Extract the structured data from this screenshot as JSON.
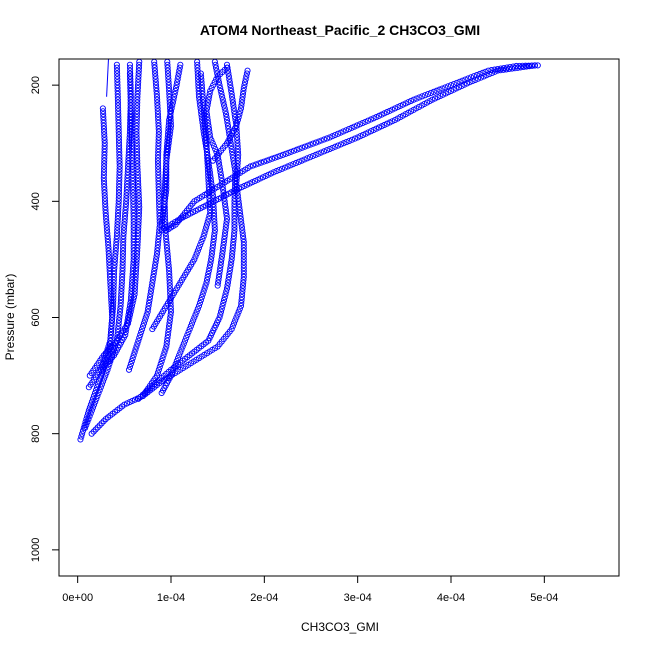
{
  "chart_data": {
    "type": "scatter",
    "title": "ATOM4 Northeast_Pacific_2 CH3CO3_GMI",
    "xlabel": "CH3CO3_GMI",
    "ylabel": "Pressure (mbar)",
    "xlim": [
      -2e-05,
      0.00058
    ],
    "ylim": [
      1045,
      155
    ],
    "y_reversed": true,
    "x_ticks": [
      {
        "value": 0,
        "label": "0e+00"
      },
      {
        "value": 0.0001,
        "label": "1e-04"
      },
      {
        "value": 0.0002,
        "label": "2e-04"
      },
      {
        "value": 0.0003,
        "label": "3e-04"
      },
      {
        "value": 0.0004,
        "label": "4e-04"
      },
      {
        "value": 0.0005,
        "label": "5e-04"
      }
    ],
    "y_ticks": [
      {
        "value": 200,
        "label": "200"
      },
      {
        "value": 400,
        "label": "400"
      },
      {
        "value": 600,
        "label": "600"
      },
      {
        "value": 800,
        "label": "800"
      },
      {
        "value": 1000,
        "label": "1000"
      }
    ],
    "marker": "open-circle",
    "marker_color": "#0000ff",
    "grid": false,
    "legend": "none",
    "series": [
      {
        "values": [
          [
            3e-06,
            810
          ],
          [
            1.2e-05,
            760
          ],
          [
            2.3e-05,
            710
          ],
          [
            3.4e-05,
            660
          ],
          [
            3.7e-05,
            600
          ],
          [
            3.5e-05,
            540
          ],
          [
            3.3e-05,
            480
          ],
          [
            3e-05,
            420
          ],
          [
            2.8e-05,
            360
          ],
          [
            2.9e-05,
            300
          ],
          [
            2.7e-05,
            240
          ]
        ]
      },
      {
        "values": [
          [
            8e-06,
            790
          ],
          [
            2e-05,
            740
          ],
          [
            3.2e-05,
            690
          ],
          [
            4.2e-05,
            640
          ],
          [
            4.6e-05,
            580
          ],
          [
            4.8e-05,
            520
          ],
          [
            4.9e-05,
            460
          ],
          [
            5.2e-05,
            400
          ],
          [
            5.4e-05,
            340
          ],
          [
            5.6e-05,
            280
          ],
          [
            5.7e-05,
            220
          ],
          [
            5.6e-05,
            165
          ]
        ]
      },
      {
        "values": [
          [
            1.2e-05,
            720
          ],
          [
            2.5e-05,
            690
          ],
          [
            3.9e-05,
            665
          ],
          [
            5.1e-05,
            630
          ],
          [
            5.7e-05,
            570
          ],
          [
            6e-05,
            500
          ],
          [
            6e-05,
            430
          ],
          [
            5.9e-05,
            360
          ],
          [
            5.8e-05,
            300
          ],
          [
            5.7e-05,
            240
          ],
          [
            5.6e-05,
            180
          ]
        ]
      },
      {
        "values": [
          [
            1.3e-05,
            700
          ],
          [
            2.8e-05,
            665
          ],
          [
            4.2e-05,
            640
          ],
          [
            5.4e-05,
            610
          ],
          [
            6.1e-05,
            560
          ],
          [
            6.4e-05,
            480
          ],
          [
            6.6e-05,
            410
          ],
          [
            6.4e-05,
            340
          ],
          [
            6.3e-05,
            280
          ],
          [
            6.4e-05,
            220
          ],
          [
            6.6e-05,
            160
          ]
        ]
      },
      {
        "values": [
          [
            1.5e-05,
            800
          ],
          [
            3e-05,
            775
          ],
          [
            5e-05,
            750
          ],
          [
            7e-05,
            735
          ],
          [
            8.5e-05,
            700
          ],
          [
            9.5e-05,
            650
          ],
          [
            0.0001,
            590
          ],
          [
            9.8e-05,
            520
          ],
          [
            9.4e-05,
            450
          ],
          [
            9.3e-05,
            390
          ],
          [
            9.5e-05,
            330
          ],
          [
            0.0001,
            270
          ],
          [
            9.8e-05,
            210
          ],
          [
            9.6e-05,
            160
          ]
        ]
      },
      {
        "values": [
          [
            6.5e-05,
            740
          ],
          [
            8.2e-05,
            715
          ],
          [
            0.0001,
            690
          ],
          [
            0.00012,
            665
          ],
          [
            0.00014,
            640
          ],
          [
            0.000152,
            600
          ],
          [
            0.00016,
            550
          ],
          [
            0.000165,
            500
          ],
          [
            0.000168,
            450
          ],
          [
            0.000168,
            400
          ],
          [
            0.000169,
            350
          ],
          [
            0.000164,
            300
          ],
          [
            0.000159,
            250
          ],
          [
            0.000152,
            200
          ],
          [
            0.000147,
            160
          ]
        ]
      },
      {
        "values": [
          [
            7e-05,
            735
          ],
          [
            9e-05,
            710
          ],
          [
            0.00011,
            690
          ],
          [
            0.00013,
            670
          ],
          [
            0.00015,
            650
          ],
          [
            0.000165,
            620
          ],
          [
            0.000175,
            580
          ],
          [
            0.000178,
            530
          ],
          [
            0.000178,
            470
          ],
          [
            0.000174,
            420
          ],
          [
            0.00017,
            370
          ],
          [
            0.000172,
            320
          ],
          [
            0.00017,
            270
          ],
          [
            0.000165,
            215
          ],
          [
            0.00016,
            165
          ]
        ]
      },
      {
        "values": [
          [
            9e-05,
            730
          ],
          [
            0.0001,
            700
          ],
          [
            0.00011,
            660
          ],
          [
            0.00012,
            620
          ],
          [
            0.00013,
            580
          ],
          [
            0.000138,
            540
          ],
          [
            0.000143,
            500
          ],
          [
            0.000147,
            450
          ],
          [
            0.000145,
            390
          ],
          [
            0.00014,
            330
          ],
          [
            0.000135,
            280
          ],
          [
            0.00013,
            220
          ],
          [
            0.000128,
            160
          ]
        ]
      },
      {
        "values": [
          [
            9.5e-05,
            450
          ],
          [
            0.000105,
            440
          ],
          [
            0.000125,
            400
          ],
          [
            0.000155,
            370
          ],
          [
            0.000185,
            340
          ],
          [
            0.00022,
            320
          ],
          [
            0.00027,
            290
          ],
          [
            0.00032,
            255
          ],
          [
            0.00036,
            225
          ],
          [
            0.0004,
            200
          ],
          [
            0.00044,
            175
          ],
          [
            0.00047,
            167
          ],
          [
            0.000493,
            166
          ]
        ]
      },
      {
        "values": [
          [
            9e-05,
            450
          ],
          [
            0.00011,
            430
          ],
          [
            0.00014,
            405
          ],
          [
            0.00017,
            380
          ],
          [
            0.00021,
            350
          ],
          [
            0.000255,
            320
          ],
          [
            0.0003,
            290
          ],
          [
            0.00034,
            260
          ],
          [
            0.00038,
            225
          ],
          [
            0.00042,
            195
          ],
          [
            0.00045,
            175
          ],
          [
            0.00049,
            166
          ]
        ]
      },
      {
        "values": [
          [
            2.5e-05,
            690
          ],
          [
            3.5e-05,
            640
          ],
          [
            3.8e-05,
            580
          ],
          [
            3.9e-05,
            520
          ],
          [
            4.2e-05,
            460
          ],
          [
            4.4e-05,
            400
          ],
          [
            4.5e-05,
            340
          ],
          [
            4.4e-05,
            280
          ],
          [
            4.3e-05,
            220
          ],
          [
            4.2e-05,
            165
          ]
        ]
      },
      {
        "values": [
          [
            5.5e-05,
            690
          ],
          [
            6.5e-05,
            640
          ],
          [
            7.5e-05,
            590
          ],
          [
            8e-05,
            540
          ],
          [
            8.5e-05,
            490
          ],
          [
            8.8e-05,
            440
          ],
          [
            8.7e-05,
            390
          ],
          [
            8.6e-05,
            330
          ],
          [
            8.7e-05,
            280
          ],
          [
            8.5e-05,
            220
          ],
          [
            8.2e-05,
            160
          ]
        ]
      },
      {
        "values": [
          [
            8e-05,
            620
          ],
          [
            9.5e-05,
            580
          ],
          [
            0.00011,
            540
          ],
          [
            0.000125,
            500
          ],
          [
            0.000135,
            460
          ],
          [
            0.000142,
            420
          ],
          [
            0.00014,
            360
          ],
          [
            0.000138,
            300
          ],
          [
            0.000135,
            240
          ],
          [
            0.000132,
            180
          ]
        ]
      },
      {
        "values": [
          [
            0.00015,
            545
          ],
          [
            0.000155,
            490
          ],
          [
            0.00016,
            430
          ],
          [
            0.000155,
            370
          ],
          [
            0.00015,
            320
          ],
          [
            0.000142,
            290
          ],
          [
            0.000138,
            245
          ],
          [
            0.000142,
            210
          ],
          [
            0.00015,
            185
          ],
          [
            0.00016,
            170
          ]
        ]
      },
      {
        "values": [
          [
            9e-05,
            440
          ],
          [
            9.5e-05,
            380
          ],
          [
            9.5e-05,
            320
          ],
          [
            9.8e-05,
            260
          ],
          [
            0.000106,
            200
          ],
          [
            0.00011,
            165
          ]
        ]
      },
      {
        "values": [
          [
            0.000145,
            330
          ],
          [
            0.00016,
            300
          ],
          [
            0.00017,
            270
          ],
          [
            0.000175,
            240
          ],
          [
            0.000178,
            205
          ],
          [
            0.000182,
            175
          ]
        ]
      }
    ],
    "annotation_line": {
      "x": [
        3.1e-05,
        3.3e-05
      ],
      "y": [
        220,
        155
      ]
    }
  }
}
